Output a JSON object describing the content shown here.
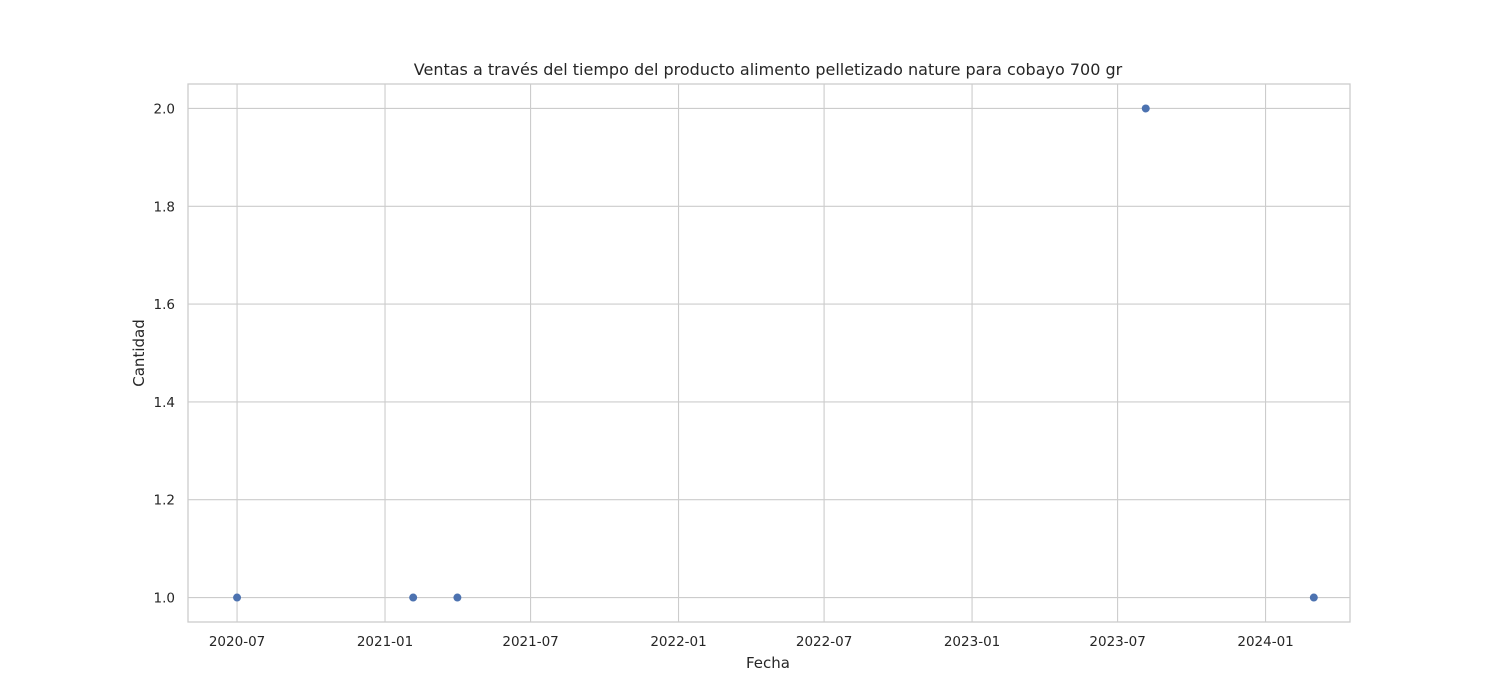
{
  "chart_data": {
    "type": "scatter",
    "title": "Ventas a través del tiempo del producto alimento pelletizado nature para cobayo 700 gr",
    "xlabel": "Fecha",
    "ylabel": "Cantidad",
    "x_ticks": [
      "2020-07",
      "2021-01",
      "2021-07",
      "2022-01",
      "2022-07",
      "2023-01",
      "2023-07",
      "2024-01"
    ],
    "y_ticks": [
      "1.0",
      "1.2",
      "1.4",
      "1.6",
      "1.8",
      "2.0"
    ],
    "xlim": [
      "2020-05-01",
      "2024-04-15"
    ],
    "ylim": [
      0.95,
      2.05
    ],
    "grid": true,
    "points": [
      {
        "x": "2020-07-01",
        "y": 1
      },
      {
        "x": "2021-02-05",
        "y": 1
      },
      {
        "x": "2021-04-01",
        "y": 1
      },
      {
        "x": "2023-08-05",
        "y": 2
      },
      {
        "x": "2024-03-01",
        "y": 1
      }
    ],
    "colors": {
      "point": "#4c72b0",
      "grid": "#cccccc"
    }
  }
}
